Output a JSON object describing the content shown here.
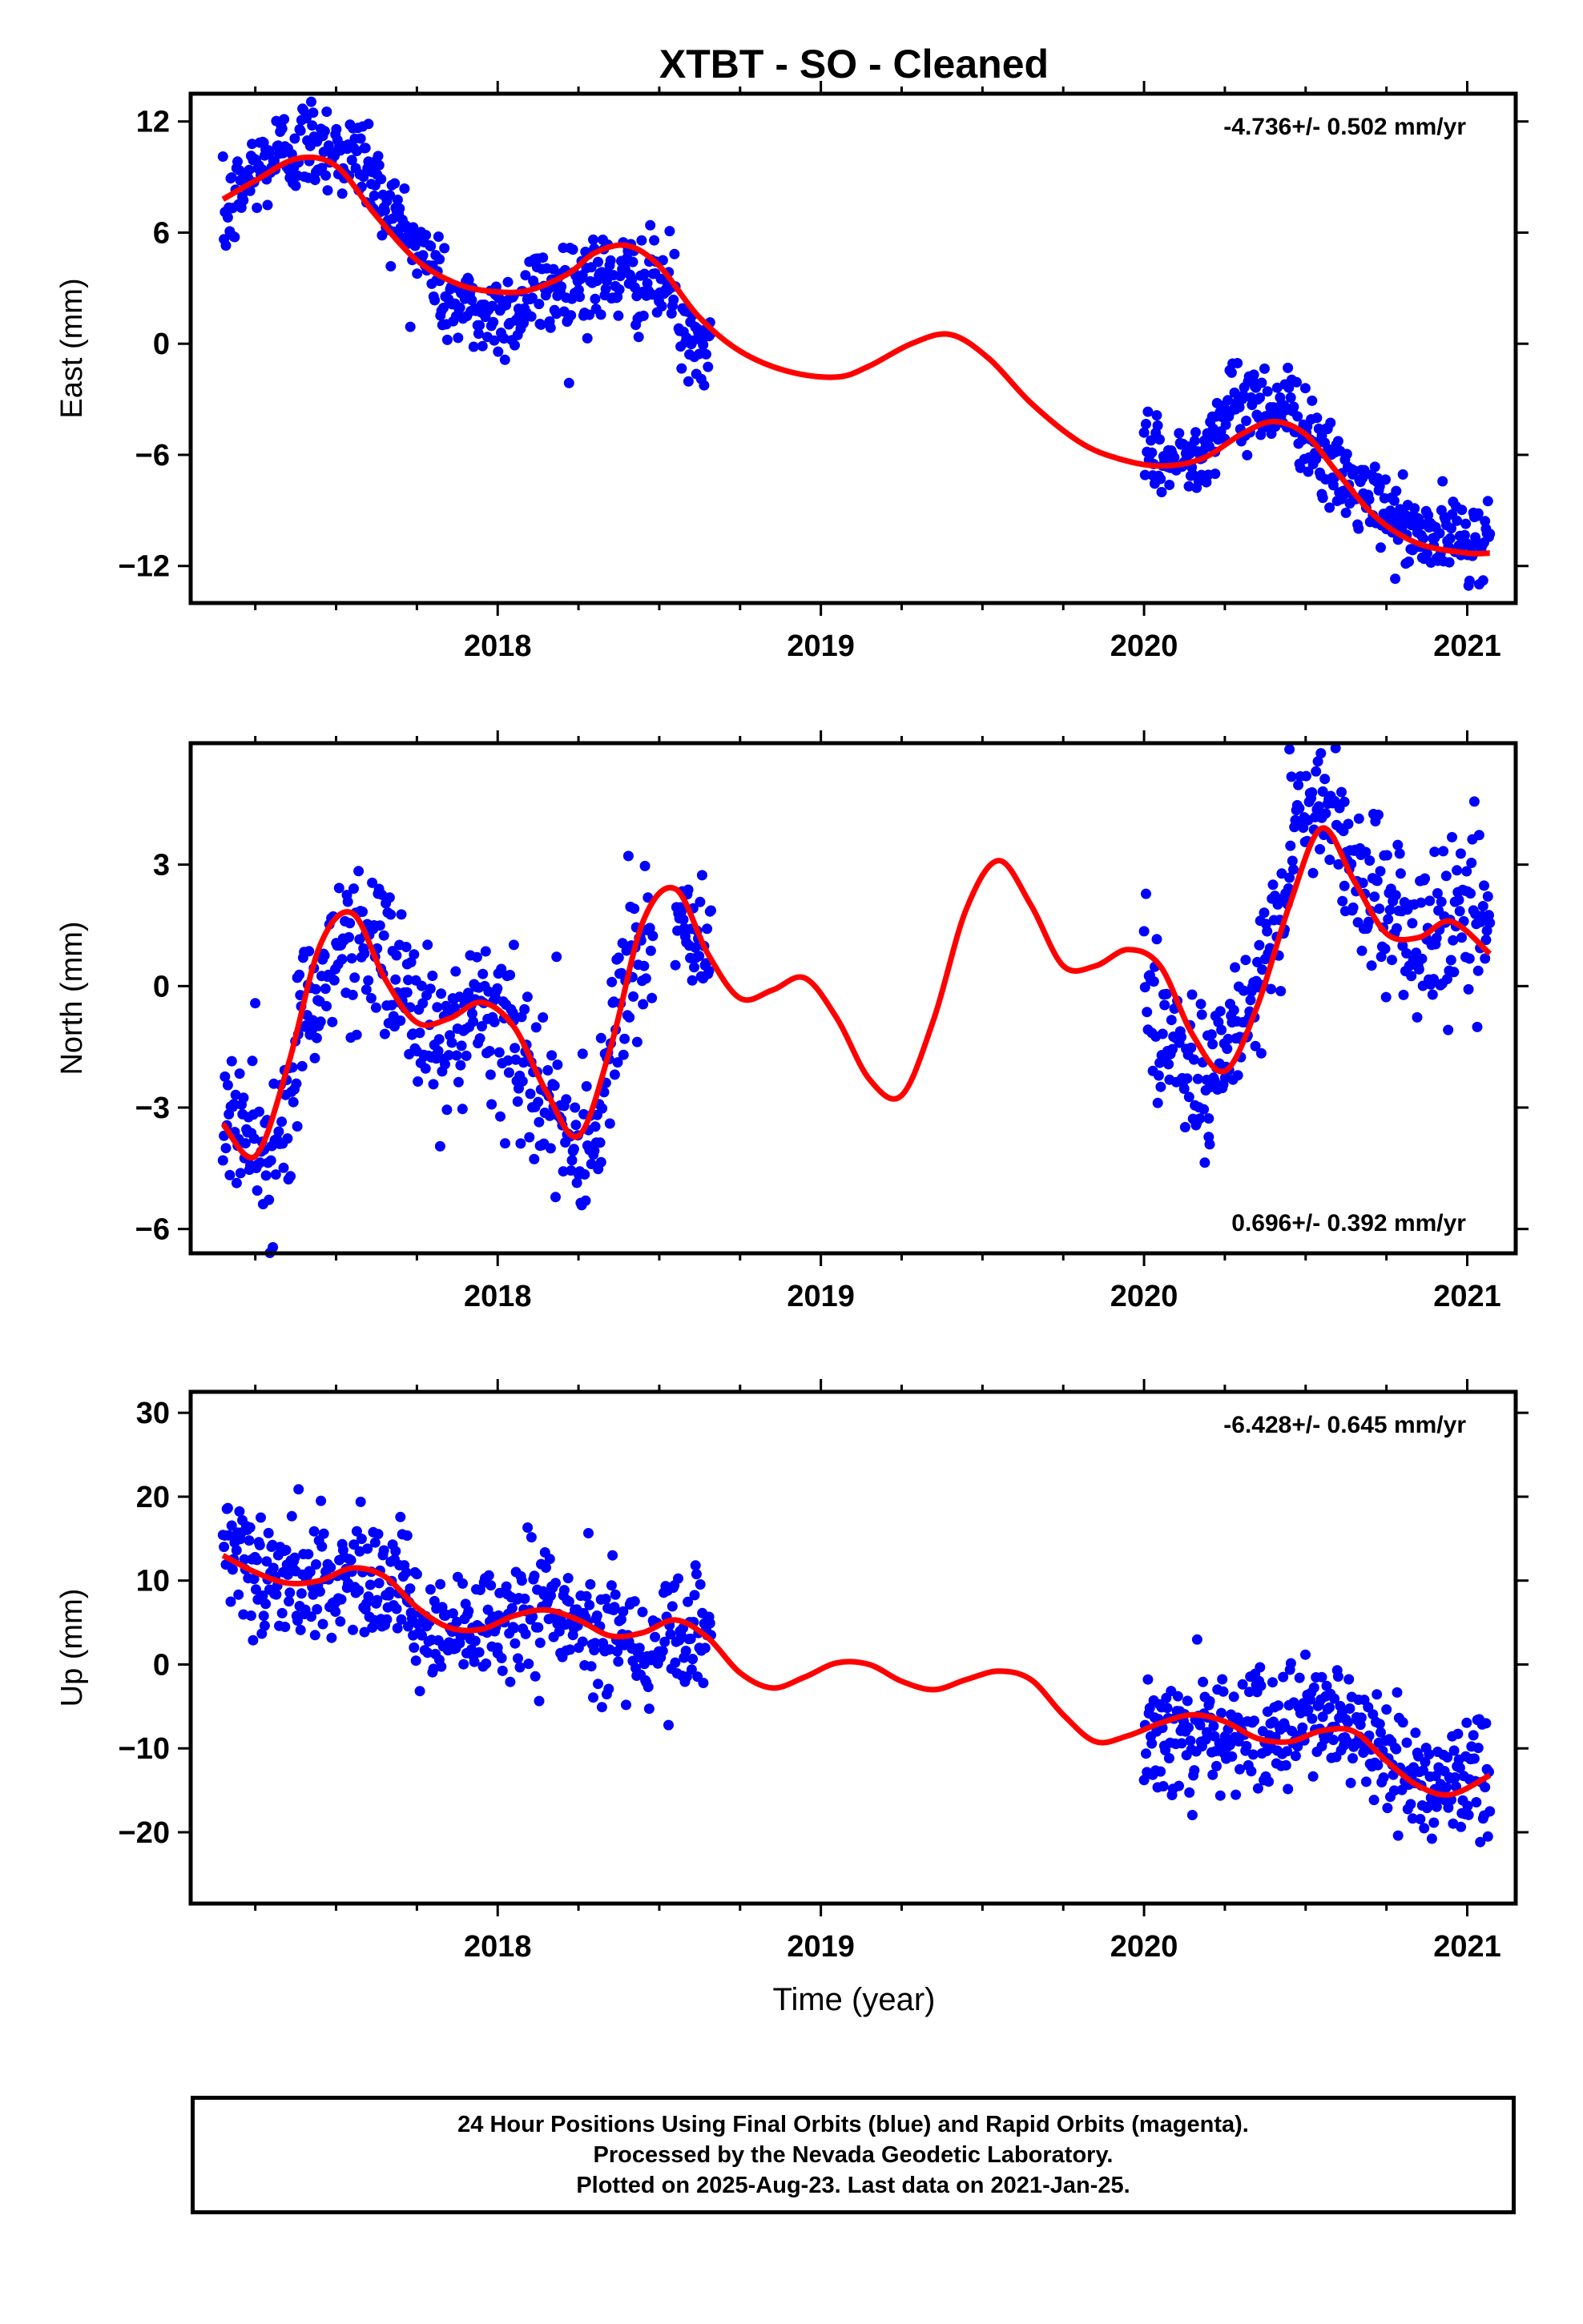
{
  "figure": {
    "title": "XTBT  - SO - Cleaned",
    "xlabel": "Time (year)"
  },
  "footer": {
    "line1": "24 Hour Positions Using Final Orbits (blue) and Rapid Orbits (magenta).",
    "line2": "Processed by the Nevada Geodetic Laboratory.",
    "line3": "Plotted on 2025-Aug-23. Last data on 2021-Jan-25."
  },
  "colors": {
    "points": "#0000ff",
    "model": "#ff0000",
    "axis": "#000000"
  },
  "chart_data": [
    {
      "type": "scatter",
      "ylabel": "East (mm)",
      "rate_text": "-4.736+/- 0.502 mm/yr",
      "rate_position": "top-right",
      "xlim": [
        2017.05,
        2021.15
      ],
      "ylim": [
        -14,
        13.5
      ],
      "yticks": [
        12,
        6,
        0,
        -6,
        -12
      ],
      "xticks": [
        2018,
        2019,
        2020,
        2021
      ],
      "grid": false,
      "series": [
        {
          "kind": "points",
          "segments": [
            {
              "start": 2017.15,
              "end": 2017.6,
              "x": [
                2017.15,
                2017.25,
                2017.35,
                2017.45,
                2017.55
              ],
              "y": [
                6.5,
                9.5,
                10.5,
                11.0,
                10.0
              ],
              "spread": 1.3
            },
            {
              "start": 2017.6,
              "end": 2017.82,
              "x": [
                2017.6,
                2017.7,
                2017.8
              ],
              "y": [
                9.0,
                6.5,
                4.0
              ],
              "spread": 1.2
            },
            {
              "start": 2017.82,
              "end": 2018.08,
              "x": [
                2017.82,
                2017.95,
                2018.05
              ],
              "y": [
                2.5,
                1.5,
                1.8
              ],
              "spread": 1.2
            },
            {
              "start": 2018.08,
              "end": 2018.55,
              "x": [
                2018.08,
                2018.25,
                2018.4,
                2018.55
              ],
              "y": [
                2.5,
                3.5,
                3.5,
                3.0
              ],
              "spread": 1.3
            },
            {
              "start": 2018.56,
              "end": 2018.66,
              "x": [
                2018.56,
                2018.66
              ],
              "y": [
                0.5,
                -0.5
              ],
              "spread": 0.9
            },
            {
              "start": 2020.0,
              "end": 2020.22,
              "x": [
                2020.0,
                2020.1,
                2020.22
              ],
              "y": [
                -6.0,
                -6.5,
                -5.0
              ],
              "spread": 1.0
            },
            {
              "start": 2020.22,
              "end": 2020.55,
              "x": [
                2020.22,
                2020.35,
                2020.45,
                2020.55
              ],
              "y": [
                -4.0,
                -3.0,
                -3.5,
                -5.5
              ],
              "spread": 1.2
            },
            {
              "start": 2020.55,
              "end": 2021.07,
              "x": [
                2020.55,
                2020.7,
                2020.85,
                2021.07
              ],
              "y": [
                -6.5,
                -8.5,
                -10.5,
                -10.5
              ],
              "spread": 1.1
            }
          ]
        },
        {
          "kind": "model",
          "x": [
            2017.15,
            2017.25,
            2017.38,
            2017.5,
            2017.62,
            2017.75,
            2017.88,
            2018.0,
            2018.1,
            2018.22,
            2018.3,
            2018.4,
            2018.5,
            2018.62,
            2018.75,
            2018.9,
            2019.05,
            2019.15,
            2019.28,
            2019.4,
            2019.52,
            2019.65,
            2019.8,
            2019.92,
            2020.05,
            2020.18,
            2020.3,
            2020.4,
            2020.5,
            2020.6,
            2020.72,
            2020.85,
            2021.0,
            2021.07
          ],
          "y": [
            7.8,
            8.8,
            10.0,
            9.6,
            7.0,
            4.5,
            3.2,
            2.8,
            2.9,
            3.8,
            4.9,
            5.3,
            4.2,
            1.5,
            -0.4,
            -1.5,
            -1.8,
            -1.2,
            0.0,
            0.5,
            -0.8,
            -3.2,
            -5.3,
            -6.2,
            -6.6,
            -6.2,
            -4.9,
            -4.2,
            -4.9,
            -7.0,
            -9.4,
            -10.8,
            -11.3,
            -11.3
          ]
        }
      ]
    },
    {
      "type": "scatter",
      "ylabel": "North (mm)",
      "rate_text": "0.696+/- 0.392 mm/yr",
      "rate_position": "bottom-right",
      "xlim": [
        2017.05,
        2021.15
      ],
      "ylim": [
        -6.6,
        6.0
      ],
      "yticks": [
        3,
        0,
        -3,
        -6
      ],
      "xticks": [
        2018,
        2019,
        2020,
        2021
      ],
      "grid": false,
      "series": [
        {
          "kind": "points",
          "segments": [
            {
              "start": 2017.15,
              "end": 2017.38,
              "x": [
                2017.15,
                2017.22,
                2017.3,
                2017.38
              ],
              "y": [
                -2.8,
                -3.8,
                -4.2,
                -2.5
              ],
              "spread": 1.0
            },
            {
              "start": 2017.38,
              "end": 2017.72,
              "x": [
                2017.38,
                2017.5,
                2017.6,
                2017.72
              ],
              "y": [
                -1.0,
                0.8,
                1.2,
                0.0
              ],
              "spread": 0.9
            },
            {
              "start": 2017.72,
              "end": 2018.05,
              "x": [
                2017.72,
                2017.85,
                2018.0
              ],
              "y": [
                -0.5,
                -1.5,
                -1.0
              ],
              "spread": 0.9
            },
            {
              "start": 2018.05,
              "end": 2018.32,
              "x": [
                2018.05,
                2018.15,
                2018.25,
                2018.32
              ],
              "y": [
                -1.5,
                -3.0,
                -4.0,
                -4.5
              ],
              "spread": 1.0
            },
            {
              "start": 2018.32,
              "end": 2018.48,
              "x": [
                2018.32,
                2018.4,
                2018.48
              ],
              "y": [
                -2.0,
                0.0,
                1.5
              ],
              "spread": 1.0
            },
            {
              "start": 2018.55,
              "end": 2018.66,
              "x": [
                2018.55,
                2018.66
              ],
              "y": [
                1.3,
                1.1
              ],
              "spread": 0.7
            },
            {
              "start": 2020.0,
              "end": 2020.2,
              "x": [
                2020.0,
                2020.1,
                2020.2
              ],
              "y": [
                0.0,
                -1.5,
                -2.8
              ],
              "spread": 1.0
            },
            {
              "start": 2020.2,
              "end": 2020.45,
              "x": [
                2020.2,
                2020.3,
                2020.45
              ],
              "y": [
                -2.8,
                -1.0,
                2.0
              ],
              "spread": 0.9
            },
            {
              "start": 2020.45,
              "end": 2020.62,
              "x": [
                2020.45,
                2020.55,
                2020.62
              ],
              "y": [
                4.0,
                4.5,
                3.8
              ],
              "spread": 0.8
            },
            {
              "start": 2020.62,
              "end": 2021.07,
              "x": [
                2020.62,
                2020.75,
                2020.88,
                2021.0,
                2021.07
              ],
              "y": [
                3.0,
                2.0,
                1.0,
                2.0,
                2.0
              ],
              "spread": 1.1
            }
          ]
        },
        {
          "kind": "model",
          "x": [
            2017.15,
            2017.25,
            2017.35,
            2017.45,
            2017.55,
            2017.65,
            2017.75,
            2017.85,
            2017.95,
            2018.05,
            2018.15,
            2018.25,
            2018.35,
            2018.45,
            2018.55,
            2018.65,
            2018.75,
            2018.85,
            2018.95,
            2019.05,
            2019.15,
            2019.25,
            2019.35,
            2019.45,
            2019.55,
            2019.65,
            2019.75,
            2019.85,
            2019.95,
            2020.05,
            2020.15,
            2020.25,
            2020.35,
            2020.45,
            2020.55,
            2020.65,
            2020.75,
            2020.85,
            2020.95,
            2021.07
          ],
          "y": [
            -3.4,
            -4.2,
            -2.0,
            1.0,
            1.8,
            0.2,
            -0.9,
            -0.8,
            -0.4,
            -1.0,
            -2.6,
            -3.7,
            -1.5,
            1.6,
            2.4,
            0.8,
            -0.3,
            -0.1,
            0.2,
            -0.8,
            -2.3,
            -2.7,
            -0.8,
            1.9,
            3.1,
            2.0,
            0.5,
            0.5,
            0.9,
            0.5,
            -1.2,
            -2.1,
            -0.5,
            2.0,
            3.9,
            2.6,
            1.3,
            1.2,
            1.6,
            0.8
          ]
        }
      ]
    },
    {
      "type": "scatter",
      "ylabel": "Up (mm)",
      "rate_text": "-6.428+/- 0.645 mm/yr",
      "rate_position": "top-right",
      "xlim": [
        2017.05,
        2021.15
      ],
      "ylim": [
        -28.5,
        32.5
      ],
      "yticks": [
        30,
        20,
        10,
        0,
        -10,
        -20
      ],
      "xticks": [
        2018,
        2019,
        2020,
        2021
      ],
      "grid": false,
      "series": [
        {
          "kind": "points",
          "segments": [
            {
              "start": 2017.15,
              "end": 2017.72,
              "x": [
                2017.15,
                2017.35,
                2017.55,
                2017.72
              ],
              "y": [
                12.0,
                10.0,
                10.5,
                10.0
              ],
              "spread": 3.6
            },
            {
              "start": 2017.72,
              "end": 2018.0,
              "x": [
                2017.72,
                2017.85,
                2018.0
              ],
              "y": [
                7.0,
                4.0,
                5.0
              ],
              "spread": 3.2
            },
            {
              "start": 2018.0,
              "end": 2018.66,
              "x": [
                2018.0,
                2018.15,
                2018.35,
                2018.5,
                2018.66
              ],
              "y": [
                6.0,
                7.0,
                3.0,
                2.5,
                5.0
              ],
              "spread": 3.8
            },
            {
              "start": 2020.0,
              "end": 2020.55,
              "x": [
                2020.0,
                2020.15,
                2020.35,
                2020.55
              ],
              "y": [
                -9.0,
                -7.0,
                -8.0,
                -7.0
              ],
              "spread": 3.6
            },
            {
              "start": 2020.55,
              "end": 2021.07,
              "x": [
                2020.55,
                2020.72,
                2020.88,
                2021.07
              ],
              "y": [
                -6.0,
                -11.0,
                -15.0,
                -13.0
              ],
              "spread": 3.8
            }
          ]
        },
        {
          "kind": "model",
          "x": [
            2017.15,
            2017.25,
            2017.35,
            2017.45,
            2017.55,
            2017.65,
            2017.75,
            2017.85,
            2017.95,
            2018.05,
            2018.15,
            2018.25,
            2018.35,
            2018.45,
            2018.55,
            2018.65,
            2018.75,
            2018.85,
            2018.95,
            2019.05,
            2019.15,
            2019.25,
            2019.35,
            2019.45,
            2019.55,
            2019.65,
            2019.75,
            2019.85,
            2019.95,
            2020.05,
            2020.15,
            2020.25,
            2020.35,
            2020.45,
            2020.55,
            2020.65,
            2020.75,
            2020.85,
            2020.95,
            2021.07
          ],
          "y": [
            13.0,
            11.0,
            9.7,
            10.0,
            11.5,
            10.5,
            6.8,
            4.4,
            4.2,
            5.8,
            6.5,
            5.3,
            3.4,
            3.8,
            5.3,
            3.2,
            -1.0,
            -2.8,
            -1.5,
            0.2,
            0.0,
            -2.0,
            -3.0,
            -1.8,
            -0.8,
            -1.8,
            -6.0,
            -9.2,
            -8.5,
            -7.0,
            -6.0,
            -6.8,
            -8.8,
            -9.2,
            -7.9,
            -8.0,
            -11.5,
            -14.5,
            -15.5,
            -13.2
          ]
        }
      ]
    }
  ]
}
